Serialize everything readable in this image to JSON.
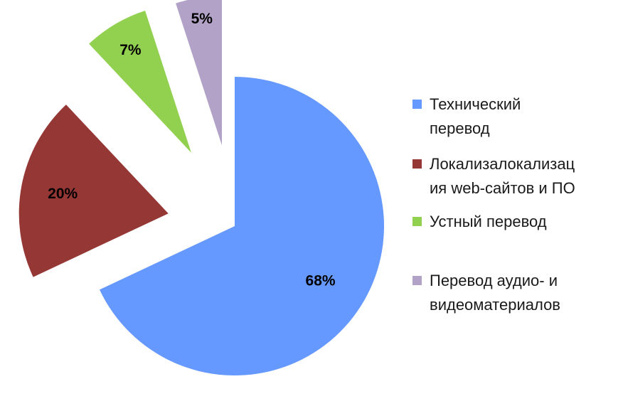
{
  "chart_data": {
    "type": "pie",
    "exploded": true,
    "slices": [
      {
        "label": "Технический перевод",
        "value": 68,
        "value_label": "68%",
        "color": "#6699FF"
      },
      {
        "label": "Локализалокализация web-сайтов и ПО",
        "value": 20,
        "value_label": "20%",
        "color": "#953735"
      },
      {
        "label": "Устный перевод",
        "value": 7,
        "value_label": "7%",
        "color": "#92D050"
      },
      {
        "label": "Перевод аудио- и видеоматериалов",
        "value": 5,
        "value_label": "5%",
        "color": "#B3A2C7"
      }
    ],
    "legend": {
      "placement": "right",
      "entries": [
        {
          "lines": [
            "Технический",
            "перевод"
          ]
        },
        {
          "lines": [
            "Локализалокализац",
            "ия web-сайтов и ПО"
          ]
        },
        {
          "lines": [
            "Устный перевод"
          ]
        },
        {
          "lines": [
            "Перевод аудио- и",
            "видеоматериалов"
          ]
        }
      ]
    }
  }
}
